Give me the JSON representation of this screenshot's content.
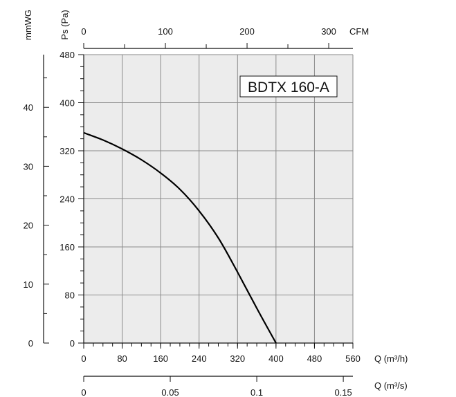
{
  "chart_data": {
    "type": "line",
    "title": "BDTX 160-A",
    "primary_x": {
      "label": "Q (m³/h)",
      "range": [
        0,
        560
      ],
      "ticks": [
        "0",
        "80",
        "160",
        "240",
        "320",
        "400",
        "480",
        "560"
      ]
    },
    "primary_y": {
      "label": "Ps (Pa)",
      "range": [
        0,
        480
      ],
      "ticks": [
        "0",
        "80",
        "160",
        "240",
        "320",
        "400",
        "480"
      ]
    },
    "top_x": {
      "label": "CFM",
      "ticks": [
        "0",
        "100",
        "200",
        "300"
      ]
    },
    "left_y": {
      "label": "mmWG",
      "ticks": [
        "0",
        "10",
        "20",
        "30",
        "40"
      ]
    },
    "bottom_x2": {
      "label": "Q (m³/s)",
      "ticks": [
        "0",
        "0.05",
        "0.1",
        "0.15"
      ]
    },
    "grid": true,
    "series": [
      {
        "x": [
          0,
          40,
          80,
          120,
          160,
          200,
          240,
          280,
          320,
          360,
          400
        ],
        "y": [
          350,
          338,
          323,
          305,
          283,
          256,
          220,
          175,
          118,
          58,
          0
        ]
      }
    ]
  }
}
